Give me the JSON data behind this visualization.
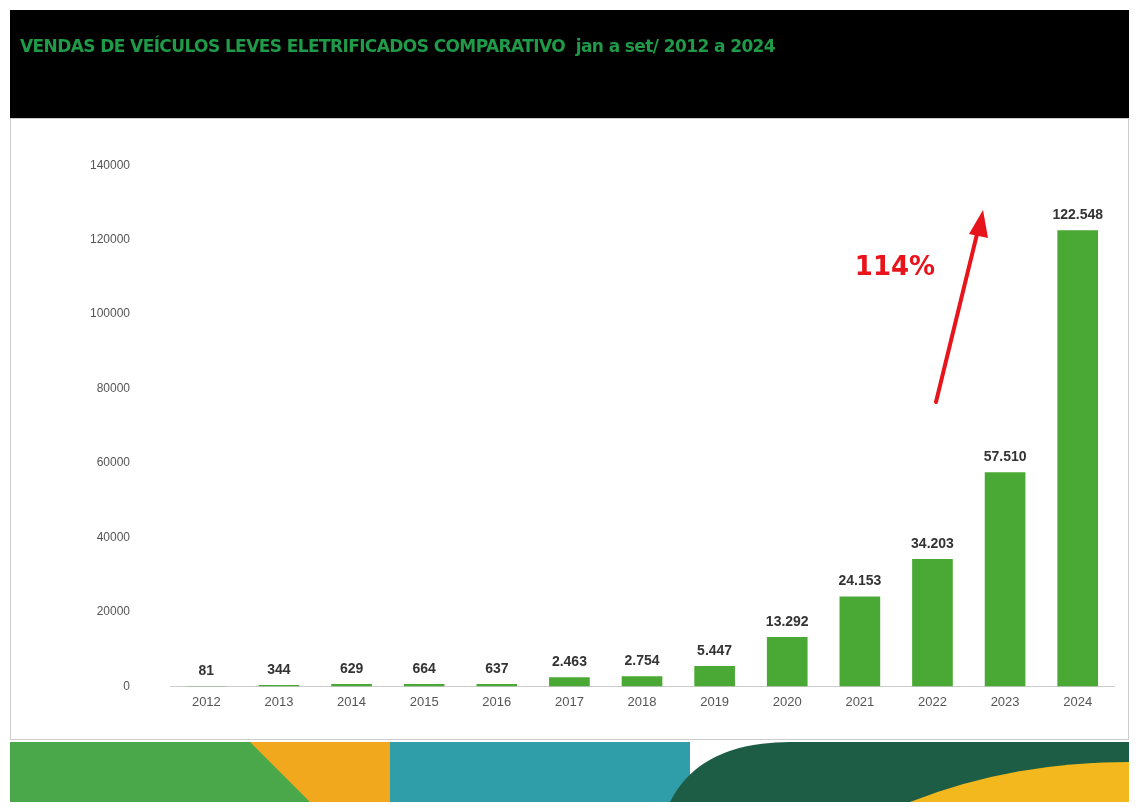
{
  "chart_data": {
    "type": "bar",
    "title": "VENDAS DE VEÍCULOS LEVES ELETRIFICADOS COMPARATIVO  jan a set/ 2012 a 2024",
    "categories": [
      "2012",
      "2013",
      "2014",
      "2015",
      "2016",
      "2017",
      "2018",
      "2019",
      "2020",
      "2021",
      "2022",
      "2023",
      "2024"
    ],
    "values": [
      81,
      344,
      629,
      664,
      637,
      2463,
      2754,
      5447,
      13292,
      24153,
      34203,
      57510,
      122548
    ],
    "value_labels": [
      "81",
      "344",
      "629",
      "664",
      "637",
      "2.463",
      "2.754",
      "5.447",
      "13.292",
      "24.153",
      "34.203",
      "57.510",
      "122.548"
    ],
    "color": "#4aa934",
    "ylim": [
      0,
      140000
    ],
    "yticks": [
      0,
      20000,
      40000,
      60000,
      80000,
      100000,
      120000,
      140000
    ],
    "grid": false,
    "legend": false,
    "annotations": [
      "114%"
    ]
  }
}
